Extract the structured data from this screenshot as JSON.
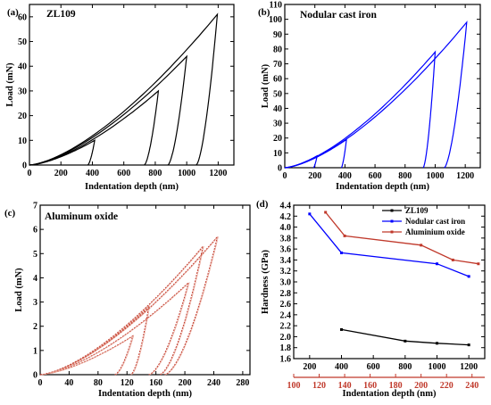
{
  "chart_data": [
    {
      "panel": "(a)",
      "type": "line",
      "title": "ZL109",
      "xlabel": "Indentation depth (nm)",
      "ylabel": "Load (mN)",
      "xlim": [
        0,
        1300
      ],
      "ylim": [
        0,
        65
      ],
      "xticks": [
        0,
        200,
        400,
        600,
        800,
        1000,
        1200
      ],
      "yticks": [
        0,
        10,
        20,
        30,
        40,
        50,
        60
      ],
      "color": "#000000",
      "indents": [
        {
          "max_depth": 415,
          "max_load": 10,
          "final_depth": 370
        },
        {
          "max_depth": 820,
          "max_load": 30,
          "final_depth": 730
        },
        {
          "max_depth": 1000,
          "max_load": 44,
          "final_depth": 880
        },
        {
          "max_depth": 1195,
          "max_load": 61,
          "final_depth": 1060
        }
      ]
    },
    {
      "panel": "(b)",
      "type": "line",
      "title": "Nodular cast iron",
      "xlabel": "Indentation depth (nm)",
      "ylabel": "Load (mN)",
      "xlim": [
        0,
        1300
      ],
      "ylim": [
        0,
        110
      ],
      "xticks": [
        0,
        200,
        400,
        600,
        800,
        1000,
        1200
      ],
      "yticks": [
        0,
        10,
        20,
        30,
        40,
        50,
        60,
        70,
        80,
        90,
        100,
        110
      ],
      "color": "#0000ff",
      "indents": [
        {
          "max_depth": 215,
          "max_load": 8,
          "final_depth": 190
        },
        {
          "max_depth": 410,
          "max_load": 19,
          "final_depth": 375
        },
        {
          "max_depth": 1000,
          "max_load": 78,
          "final_depth": 920
        },
        {
          "max_depth": 1210,
          "max_load": 98,
          "final_depth": 1060
        }
      ]
    },
    {
      "panel": "(c)",
      "type": "line",
      "title": "Aluminum oxide",
      "xlabel": "Indentation depth (nm)",
      "ylabel": "Load (mN)",
      "xlim": [
        0,
        290
      ],
      "ylim": [
        0,
        7
      ],
      "xticks": [
        0,
        40,
        80,
        120,
        160,
        200,
        240,
        280
      ],
      "yticks": [
        0,
        1,
        2,
        3,
        4,
        5,
        6,
        7
      ],
      "color": "#c0392b",
      "indents": [
        {
          "max_depth": 128,
          "max_load": 1.6,
          "final_depth": 103
        },
        {
          "max_depth": 150,
          "max_load": 2.8,
          "final_depth": 125
        },
        {
          "max_depth": 205,
          "max_load": 3.8,
          "final_depth": 150
        },
        {
          "max_depth": 225,
          "max_load": 5.3,
          "final_depth": 165
        },
        {
          "max_depth": 245,
          "max_load": 5.7,
          "final_depth": 172
        }
      ]
    },
    {
      "panel": "(d)",
      "type": "line",
      "xlabel": "Indentation depth (nm)",
      "ylabel": "Hardness (GPa)",
      "xlim": [
        100,
        1300
      ],
      "ylim": [
        1.6,
        4.4
      ],
      "xticks": [
        200,
        400,
        600,
        800,
        1000,
        1200
      ],
      "yticks": [
        1.6,
        1.8,
        2.0,
        2.2,
        2.4,
        2.6,
        2.8,
        3.0,
        3.2,
        3.4,
        3.6,
        3.8,
        4.0,
        4.2,
        4.4
      ],
      "x2lim": [
        100,
        250
      ],
      "x2ticks": [
        100,
        120,
        140,
        160,
        180,
        200,
        220,
        240
      ],
      "x2color": "#c0392b",
      "legend_position": "top-right",
      "series": [
        {
          "name": "ZL109",
          "axis": "bottom",
          "color": "#000000",
          "x": [
            400,
            800,
            1000,
            1200
          ],
          "y": [
            2.13,
            1.92,
            1.88,
            1.85
          ]
        },
        {
          "name": "Nodular cast iron",
          "axis": "bottom",
          "color": "#0000ff",
          "x": [
            200,
            400,
            1000,
            1200
          ],
          "y": [
            4.24,
            3.53,
            3.33,
            3.1
          ]
        },
        {
          "name": "Aluminium oxide",
          "axis": "top",
          "color": "#c0392b",
          "x": [
            125,
            140,
            200,
            225,
            245
          ],
          "y": [
            4.27,
            3.84,
            3.67,
            3.4,
            3.33
          ]
        }
      ]
    }
  ]
}
